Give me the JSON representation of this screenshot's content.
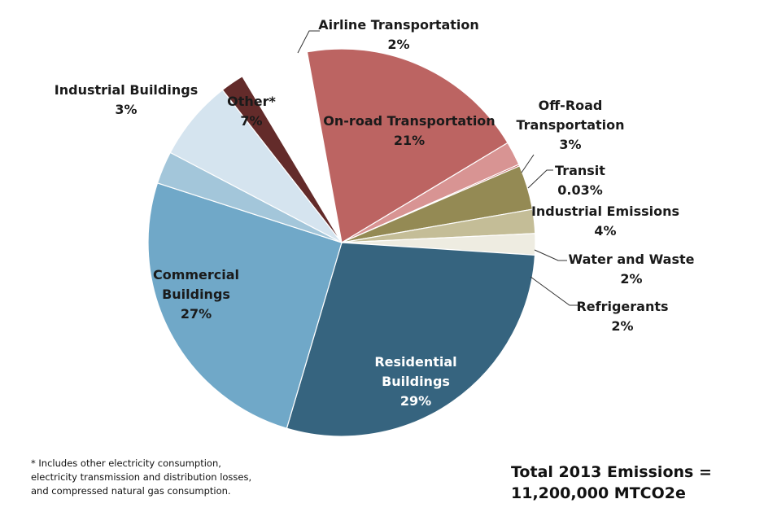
{
  "chart_data": {
    "type": "pie",
    "slices": [
      {
        "label": "On-road Transportation",
        "value": 21,
        "value_label": "21%",
        "color": "#BC6462"
      },
      {
        "label": "Off-Road Transportation",
        "value": 3,
        "value_label": "3%",
        "color": "#D89493"
      },
      {
        "label": "Transit",
        "value": 0.03,
        "value_label": "0.03%",
        "color": "#C25A58"
      },
      {
        "label": "Industrial Emissions",
        "value": 4,
        "value_label": "4%",
        "color": "#948A54"
      },
      {
        "label": "Water and Waste",
        "value": 2,
        "value_label": "2%",
        "color": "#C4BD97"
      },
      {
        "label": "Refrigerants",
        "value": 2,
        "value_label": "2%",
        "color": "#EEECE1"
      },
      {
        "label": "Residential Buildings",
        "value": 29,
        "value_label": "29%",
        "color": "#36647F"
      },
      {
        "label": "Commercial Buildings",
        "value": 27,
        "value_label": "27%",
        "color": "#70A8C8"
      },
      {
        "label": "Industrial Buildings",
        "value": 3,
        "value_label": "3%",
        "color": "#A3C6DA"
      },
      {
        "label": "Other*",
        "value": 7,
        "value_label": "7%",
        "color": "#D5E4EF"
      },
      {
        "label": "Airline Transportation",
        "value": 2,
        "value_label": "2%",
        "color": "#632B2A"
      }
    ],
    "labels": [
      {
        "lines": [
          "Airline Transportation",
          "2%"
        ]
      },
      {
        "lines": [
          "Industrial Buildings",
          "3%"
        ]
      },
      {
        "lines": [
          "Other*",
          "7%"
        ]
      },
      {
        "lines": [
          "On-road Transportation",
          "21%"
        ]
      },
      {
        "lines": [
          "Off-Road",
          "Transportation",
          "3%"
        ]
      },
      {
        "lines": [
          "Transit",
          "0.03%"
        ]
      },
      {
        "lines": [
          "Industrial Emissions",
          "4%"
        ]
      },
      {
        "lines": [
          "Water and Waste",
          "2%"
        ]
      },
      {
        "lines": [
          "Refrigerants",
          "2%"
        ]
      },
      {
        "lines": [
          "Commercial",
          "Buildings",
          "27%"
        ]
      },
      {
        "lines": [
          "Residential",
          "Buildings",
          "29%"
        ]
      }
    ]
  },
  "footnote": {
    "line1": "* Includes other electricity consumption,",
    "line2": "electricity transmission and distribution losses,",
    "line3": "and compressed natural gas consumption."
  },
  "total": {
    "line1": "Total 2013 Emissions =",
    "line2": "11,200,000 MTCO2e"
  }
}
